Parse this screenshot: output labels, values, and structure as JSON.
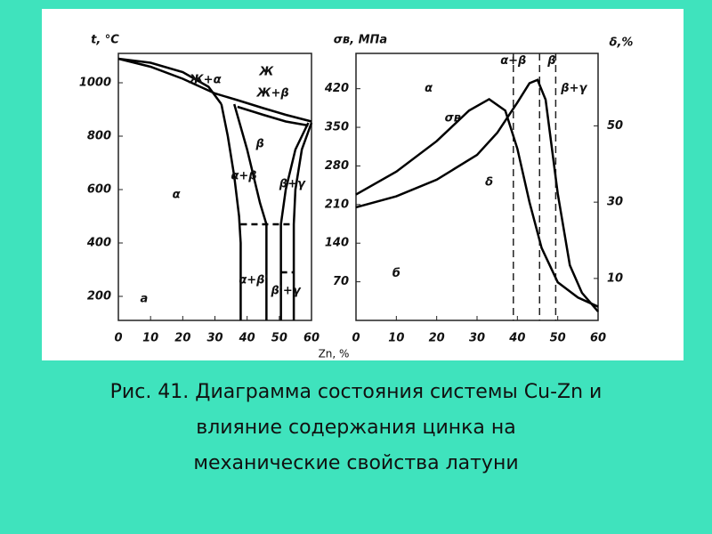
{
  "chart_data": [
    {
      "type": "line",
      "ylabel": "t, °C",
      "xlabel": "Zn, %",
      "xlim": [
        0,
        60
      ],
      "xticks": [
        0,
        10,
        20,
        30,
        40,
        50,
        60
      ],
      "ylim": [
        110,
        1110
      ],
      "yticks": [
        200,
        400,
        600,
        800,
        1000
      ],
      "color": "#000000",
      "series": [
        {
          "x": [
            0,
            10,
            20,
            30,
            37,
            45,
            52,
            60
          ],
          "values": [
            1090,
            1060,
            1015,
            960,
            935,
            905,
            880,
            855
          ],
          "style": "solid"
        },
        {
          "x": [
            0,
            10,
            20,
            28,
            32
          ],
          "values": [
            1090,
            1075,
            1040,
            985,
            920
          ],
          "style": "solid"
        },
        {
          "x": [
            37,
            45,
            52,
            59
          ],
          "values": [
            910,
            880,
            855,
            840
          ],
          "style": "solid"
        },
        {
          "x": [
            32,
            34,
            36,
            37.5,
            38,
            38
          ],
          "values": [
            920,
            800,
            650,
            500,
            400,
            110
          ],
          "style": "solid"
        },
        {
          "x": [
            36,
            40,
            44,
            46,
            46
          ],
          "values": [
            920,
            750,
            550,
            470,
            110
          ],
          "style": "solid"
        },
        {
          "x": [
            59,
            55,
            52,
            50.5,
            50.5
          ],
          "values": [
            850,
            750,
            600,
            470,
            110
          ],
          "style": "solid"
        },
        {
          "x": [
            60,
            57,
            55,
            54.5,
            54.5
          ],
          "values": [
            850,
            750,
            600,
            470,
            110
          ],
          "style": "solid"
        },
        {
          "x": [
            38,
            54.5
          ],
          "values": [
            470,
            470
          ],
          "style": "dashed"
        },
        {
          "x": [
            50.5,
            54.5
          ],
          "values": [
            290,
            290
          ],
          "style": "dashed"
        }
      ],
      "annotations": [
        "Ж+α",
        "Ж",
        "Ж+β",
        "β",
        "α",
        "α+β",
        "β+γ",
        "α+β'",
        "β'+γ",
        "а"
      ]
    },
    {
      "type": "line",
      "ylabel": "σв, МПа",
      "y2label": "δ,%",
      "xlim": [
        0,
        60
      ],
      "xticks": [
        0,
        10,
        20,
        30,
        40,
        50,
        60
      ],
      "ylim": [
        0,
        484
      ],
      "yticks": [
        70,
        140,
        210,
        280,
        350,
        420
      ],
      "y2lim": [
        -1,
        69
      ],
      "y2ticks": [
        10,
        30,
        50
      ],
      "color": "#000000",
      "series": [
        {
          "name": "σв",
          "x": [
            0,
            10,
            20,
            30,
            35,
            40,
            43,
            45,
            47,
            50,
            53,
            56,
            60
          ],
          "values": [
            205,
            225,
            255,
            300,
            340,
            395,
            430,
            436,
            400,
            230,
            100,
            50,
            16
          ]
        },
        {
          "name": "δ",
          "axis": "y2",
          "x": [
            0,
            10,
            20,
            28,
            33,
            37,
            40,
            43,
            46,
            50,
            55,
            60
          ],
          "values": [
            32,
            38,
            46,
            54,
            57,
            54,
            44,
            30,
            18,
            9,
            5,
            2.6
          ]
        }
      ],
      "boundaries": [
        39,
        45.5,
        49.5
      ],
      "annotations": [
        "α",
        "α+β",
        "β",
        "β+γ",
        "б"
      ]
    }
  ],
  "caption": [
    "Рис. 41. Диаграмма состояния системы Cu-Zn и",
    "влияние содержания цинка на",
    "механические свойства латуни"
  ]
}
